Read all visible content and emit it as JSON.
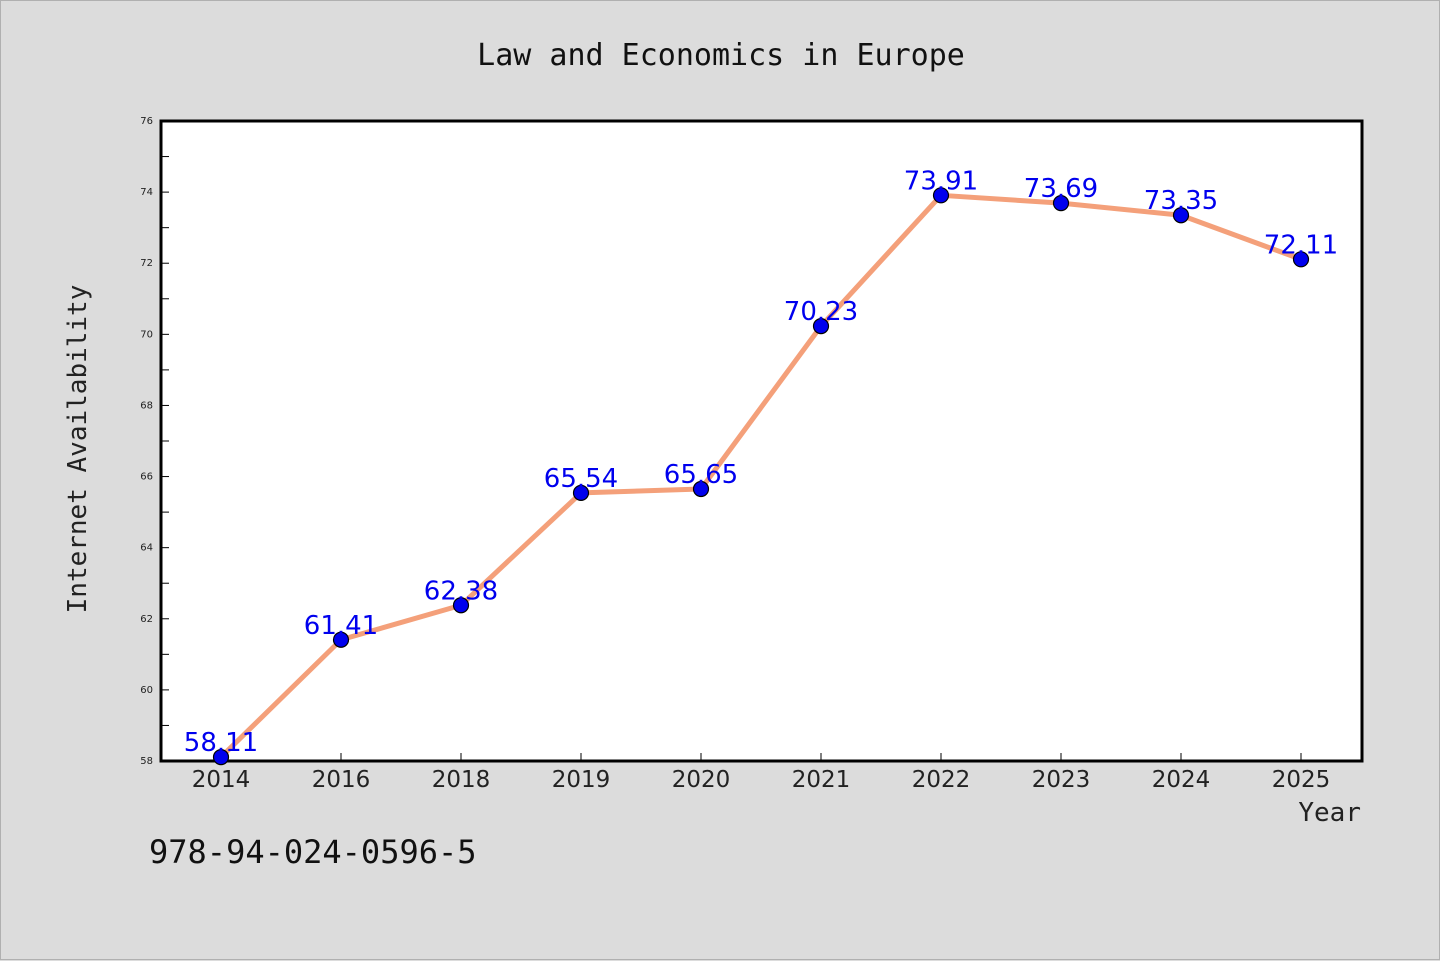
{
  "chart_data": {
    "type": "line",
    "title": "Law and Economics in Europe",
    "xlabel": "Year",
    "ylabel": "Internet Availability",
    "categories": [
      "2014",
      "2016",
      "2018",
      "2019",
      "2020",
      "2021",
      "2022",
      "2023",
      "2024",
      "2025"
    ],
    "series": [
      {
        "values": [
          58.11,
          61.41,
          62.38,
          65.54,
          65.65,
          70.23,
          73.91,
          73.69,
          73.35,
          72.11
        ],
        "labels": [
          "58.11",
          "61.41",
          "62.38",
          "65.54",
          "65.65",
          "70.23",
          "73.91",
          "73.69",
          "73.35",
          "72.11"
        ]
      }
    ],
    "ylim": [
      58,
      76
    ],
    "yticks": [
      "58",
      "60",
      "62",
      "64",
      "66",
      "68",
      "70",
      "72",
      "74",
      "76"
    ],
    "grid": false,
    "colors": {
      "line": "#f4a07a",
      "marker": "#0000ee",
      "label": "#0000ee"
    }
  },
  "footer": {
    "code": "978-94-024-0596-5"
  }
}
